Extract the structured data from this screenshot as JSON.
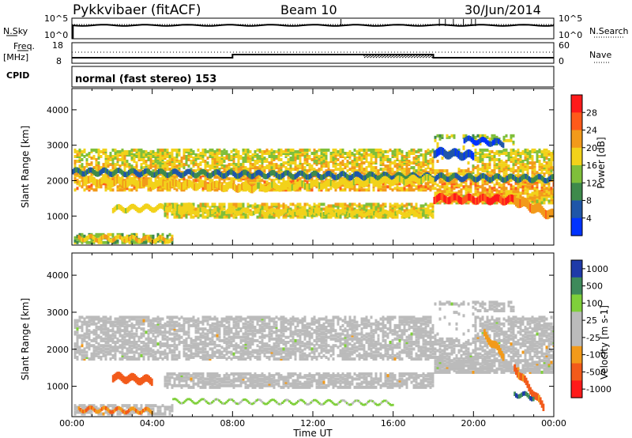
{
  "header": {
    "station": "Pykkvibaer (fitACF)",
    "beam": "Beam 10",
    "date": "30/Jun/2014"
  },
  "strip_panels": {
    "nsky": {
      "label": "N.Sky",
      "left_ticks": [
        "10^5",
        "10^0"
      ],
      "right_ticks": [
        "10^5",
        "10^0"
      ],
      "right_label": "N.Search"
    },
    "freq": {
      "label_line1": "Freq.",
      "label_line2": "[MHz]",
      "left_ticks": [
        "18",
        "8"
      ],
      "right_ticks": [
        "60",
        "0"
      ],
      "right_label": "Nave"
    },
    "cpid": {
      "label": "CPID",
      "text": "normal (fast stereo) 153"
    }
  },
  "colors": {
    "power_scale": [
      "#0033ff",
      "#1f56a8",
      "#3e8a4b",
      "#7fbf3a",
      "#f2d21a",
      "#f29a1a",
      "#ff5a1a",
      "#ff1a1a"
    ],
    "velocity_scale": [
      "#ff1a1a",
      "#f25a1a",
      "#f29a1a",
      "#bbbbbb",
      "#bbbbbb",
      "#7fcf3a",
      "#3e8a5b",
      "#1f3aa8"
    ],
    "ground_scatter": "#bbbbbb"
  },
  "chart_data": [
    {
      "type": "heatmap",
      "name": "power",
      "ylabel": "Slant Range [km]",
      "xlabel": "",
      "ylim": [
        180,
        4600
      ],
      "y_ticks": [
        "1000",
        "2000",
        "3000",
        "4000"
      ],
      "x_ticks": [
        "00:00",
        "04:00",
        "08:00",
        "12:00",
        "16:00",
        "20:00",
        "00:00"
      ],
      "colorbar_label": "Power [dB]",
      "colorbar_ticks": [
        "4",
        "8",
        "12",
        "16",
        "20",
        "24",
        "28"
      ],
      "bands": [
        {
          "x": [
            0.0,
            24.0
          ],
          "y": [
            2250,
            2050
          ],
          "w": 150,
          "v": 0.25
        },
        {
          "x": [
            0.5,
            9.0
          ],
          "y": [
            2000,
            1800
          ],
          "w": 200,
          "v": 0.6
        },
        {
          "x": [
            9.0,
            18.0
          ],
          "y": [
            1800,
            2050
          ],
          "w": 180,
          "v": 0.55
        },
        {
          "x": [
            18.0,
            22.0
          ],
          "y": [
            1500,
            1450
          ],
          "w": 200,
          "v": 0.88
        },
        {
          "x": [
            22.0,
            24.0
          ],
          "y": [
            1450,
            1000
          ],
          "w": 250,
          "v": 0.7
        },
        {
          "x": [
            5.0,
            18.0
          ],
          "y": [
            1150,
            1050
          ],
          "w": 120,
          "v": 0.55
        },
        {
          "x": [
            2.0,
            6.0
          ],
          "y": [
            1200,
            1250
          ],
          "w": 150,
          "v": 0.55
        },
        {
          "x": [
            0.3,
            5.0
          ],
          "y": [
            380,
            330
          ],
          "w": 120,
          "v": 0.6
        },
        {
          "x": [
            18.0,
            20.0
          ],
          "y": [
            2800,
            2700
          ],
          "w": 220,
          "v": 0.15
        },
        {
          "x": [
            19.5,
            21.5
          ],
          "y": [
            3150,
            3050
          ],
          "w": 150,
          "v": 0.12
        }
      ]
    },
    {
      "type": "heatmap",
      "name": "velocity",
      "ylabel": "Slant Range [km]",
      "xlabel": "Time UT",
      "ylim": [
        180,
        4600
      ],
      "y_ticks": [
        "1000",
        "2000",
        "3000",
        "4000"
      ],
      "x_ticks": [
        "00:00",
        "04:00",
        "08:00",
        "12:00",
        "16:00",
        "20:00",
        "00:00"
      ],
      "colorbar_label": "Velocity [m s-1]",
      "colorbar_ticks": [
        "1000",
        "500",
        "100",
        "25",
        "-25",
        "-100",
        "-500",
        "-1000"
      ],
      "bands": [
        {
          "x": [
            2.0,
            4.0
          ],
          "y": [
            1250,
            1150
          ],
          "w": 200,
          "v": -0.6
        },
        {
          "x": [
            22.0,
            23.5
          ],
          "y": [
            1500,
            400
          ],
          "w": 200,
          "v": -0.55
        },
        {
          "x": [
            20.5,
            21.5
          ],
          "y": [
            2400,
            1800
          ],
          "w": 200,
          "v": -0.4
        },
        {
          "x": [
            0.3,
            4.0
          ],
          "y": [
            380,
            330
          ],
          "w": 100,
          "v": -0.5
        },
        {
          "x": [
            5.0,
            16.0
          ],
          "y": [
            600,
            550
          ],
          "w": 60,
          "v": 0.3
        },
        {
          "x": [
            22.0,
            23.0
          ],
          "y": [
            800,
            700
          ],
          "w": 120,
          "v": 0.75
        }
      ]
    }
  ]
}
